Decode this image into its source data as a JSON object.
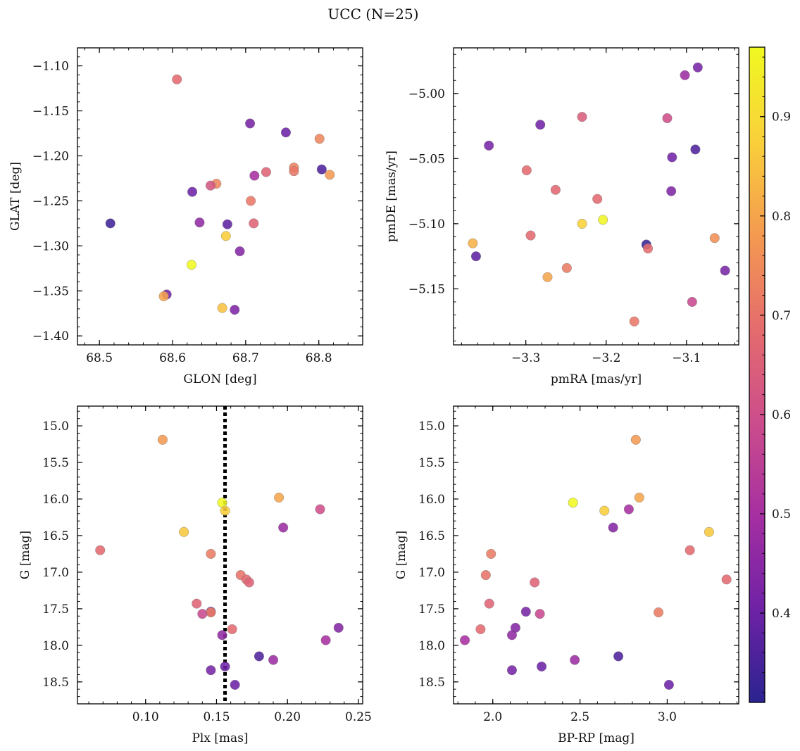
{
  "figure": {
    "title": "UCC (N=25)"
  },
  "colors": {
    "colormap": [
      "#2a2390",
      "#6f22a6",
      "#a62fa1",
      "#cc4d8b",
      "#e56c6d",
      "#f49a50",
      "#f9d03a",
      "#f0f921"
    ],
    "vline": "#000000",
    "frame": "#000000"
  },
  "colorbar": {
    "range": [
      0.31,
      0.97
    ],
    "ticks": [
      0.4,
      0.5,
      0.6,
      0.7,
      0.8,
      0.9
    ],
    "tick_labels": [
      "0.4",
      "0.5",
      "0.6",
      "0.7",
      "0.8",
      "0.9"
    ]
  },
  "chart_data": [
    {
      "type": "scatter",
      "xlabel": "GLON [deg]",
      "ylabel": "GLAT [deg]",
      "xlim": [
        68.47,
        68.86
      ],
      "ylim": [
        -1.41,
        -1.08
      ],
      "y_inverted": false,
      "xticks": [
        68.5,
        68.6,
        68.7,
        68.8
      ],
      "xtick_labels": [
        "68.5",
        "68.6",
        "68.7",
        "68.8"
      ],
      "yticks": [
        -1.4,
        -1.35,
        -1.3,
        -1.25,
        -1.2,
        -1.15,
        -1.1
      ],
      "ytick_labels": [
        "−1.40",
        "−1.35",
        "−1.30",
        "−1.25",
        "−1.20",
        "−1.15",
        "−1.10"
      ],
      "points": [
        {
          "x": 68.606,
          "y": -1.115,
          "c": 0.68
        },
        {
          "x": 68.706,
          "y": -1.164,
          "c": 0.42
        },
        {
          "x": 68.755,
          "y": -1.174,
          "c": 0.4
        },
        {
          "x": 68.801,
          "y": -1.181,
          "c": 0.74
        },
        {
          "x": 68.804,
          "y": -1.215,
          "c": 0.36
        },
        {
          "x": 68.815,
          "y": -1.221,
          "c": 0.78
        },
        {
          "x": 68.766,
          "y": -1.213,
          "c": 0.73
        },
        {
          "x": 68.766,
          "y": -1.217,
          "c": 0.71
        },
        {
          "x": 68.728,
          "y": -1.218,
          "c": 0.66
        },
        {
          "x": 68.712,
          "y": -1.222,
          "c": 0.5
        },
        {
          "x": 68.66,
          "y": -1.231,
          "c": 0.74
        },
        {
          "x": 68.652,
          "y": -1.233,
          "c": 0.62
        },
        {
          "x": 68.627,
          "y": -1.24,
          "c": 0.4
        },
        {
          "x": 68.707,
          "y": -1.25,
          "c": 0.71
        },
        {
          "x": 68.515,
          "y": -1.275,
          "c": 0.34
        },
        {
          "x": 68.637,
          "y": -1.274,
          "c": 0.46
        },
        {
          "x": 68.675,
          "y": -1.276,
          "c": 0.38
        },
        {
          "x": 68.711,
          "y": -1.275,
          "c": 0.66
        },
        {
          "x": 68.673,
          "y": -1.289,
          "c": 0.87
        },
        {
          "x": 68.692,
          "y": -1.306,
          "c": 0.44
        },
        {
          "x": 68.626,
          "y": -1.321,
          "c": 0.97
        },
        {
          "x": 68.592,
          "y": -1.354,
          "c": 0.42
        },
        {
          "x": 68.588,
          "y": -1.356,
          "c": 0.8
        },
        {
          "x": 68.668,
          "y": -1.369,
          "c": 0.85
        },
        {
          "x": 68.685,
          "y": -1.371,
          "c": 0.43
        }
      ]
    },
    {
      "type": "scatter",
      "xlabel": "pmRA [mas/yr]",
      "ylabel": "pmDE [mas/yr]",
      "xlim": [
        -3.39,
        -3.035
      ],
      "ylim": [
        -5.193,
        -4.965
      ],
      "y_inverted": false,
      "xticks": [
        -3.3,
        -3.2,
        -3.1
      ],
      "xtick_labels": [
        "−3.3",
        "−3.2",
        "−3.1"
      ],
      "yticks": [
        -5.15,
        -5.1,
        -5.05,
        -5.0
      ],
      "ytick_labels": [
        "−5.15",
        "−5.10",
        "−5.05",
        "−5.00"
      ],
      "points": [
        {
          "x": -3.086,
          "y": -4.98,
          "c": 0.42
        },
        {
          "x": -3.102,
          "y": -4.986,
          "c": 0.48
        },
        {
          "x": -3.23,
          "y": -5.018,
          "c": 0.64
        },
        {
          "x": -3.124,
          "y": -5.019,
          "c": 0.6
        },
        {
          "x": -3.282,
          "y": -5.024,
          "c": 0.41
        },
        {
          "x": -3.346,
          "y": -5.04,
          "c": 0.42
        },
        {
          "x": -3.089,
          "y": -5.043,
          "c": 0.36
        },
        {
          "x": -3.118,
          "y": -5.049,
          "c": 0.41
        },
        {
          "x": -3.299,
          "y": -5.059,
          "c": 0.68
        },
        {
          "x": -3.263,
          "y": -5.074,
          "c": 0.67
        },
        {
          "x": -3.119,
          "y": -5.075,
          "c": 0.43
        },
        {
          "x": -3.211,
          "y": -5.081,
          "c": 0.68
        },
        {
          "x": -3.23,
          "y": -5.1,
          "c": 0.88
        },
        {
          "x": -3.204,
          "y": -5.097,
          "c": 0.96
        },
        {
          "x": -3.294,
          "y": -5.109,
          "c": 0.68
        },
        {
          "x": -3.065,
          "y": -5.111,
          "c": 0.76
        },
        {
          "x": -3.366,
          "y": -5.115,
          "c": 0.82
        },
        {
          "x": -3.15,
          "y": -5.116,
          "c": 0.33
        },
        {
          "x": -3.148,
          "y": -5.119,
          "c": 0.69
        },
        {
          "x": -3.362,
          "y": -5.125,
          "c": 0.38
        },
        {
          "x": -3.249,
          "y": -5.134,
          "c": 0.72
        },
        {
          "x": -3.052,
          "y": -5.136,
          "c": 0.42
        },
        {
          "x": -3.273,
          "y": -5.141,
          "c": 0.8
        },
        {
          "x": -3.093,
          "y": -5.16,
          "c": 0.58
        },
        {
          "x": -3.165,
          "y": -5.175,
          "c": 0.71
        }
      ]
    },
    {
      "type": "scatter",
      "xlabel": "Plx [mas]",
      "ylabel": "G [mag]",
      "xlim": [
        0.052,
        0.253
      ],
      "ylim": [
        18.8,
        14.73
      ],
      "y_inverted": true,
      "xticks": [
        0.1,
        0.15,
        0.2,
        0.25
      ],
      "xtick_labels": [
        "0.10",
        "0.15",
        "0.20",
        "0.25"
      ],
      "yticks": [
        15.0,
        15.5,
        16.0,
        16.5,
        17.0,
        17.5,
        18.0,
        18.5
      ],
      "ytick_labels": [
        "15.0",
        "15.5",
        "16.0",
        "16.5",
        "17.0",
        "17.5",
        "18.0",
        "18.5"
      ],
      "vline_x": 0.156,
      "points": [
        {
          "x": 0.112,
          "y": 15.19,
          "c": 0.78
        },
        {
          "x": 0.194,
          "y": 15.98,
          "c": 0.8
        },
        {
          "x": 0.154,
          "y": 16.05,
          "c": 0.97
        },
        {
          "x": 0.156,
          "y": 16.16,
          "c": 0.87
        },
        {
          "x": 0.223,
          "y": 16.14,
          "c": 0.6
        },
        {
          "x": 0.197,
          "y": 16.39,
          "c": 0.48
        },
        {
          "x": 0.127,
          "y": 16.45,
          "c": 0.86
        },
        {
          "x": 0.068,
          "y": 16.7,
          "c": 0.68
        },
        {
          "x": 0.146,
          "y": 16.75,
          "c": 0.72
        },
        {
          "x": 0.167,
          "y": 17.04,
          "c": 0.7
        },
        {
          "x": 0.171,
          "y": 17.1,
          "c": 0.68
        },
        {
          "x": 0.173,
          "y": 17.14,
          "c": 0.66
        },
        {
          "x": 0.136,
          "y": 17.43,
          "c": 0.66
        },
        {
          "x": 0.146,
          "y": 17.54,
          "c": 0.42
        },
        {
          "x": 0.146,
          "y": 17.55,
          "c": 0.72
        },
        {
          "x": 0.14,
          "y": 17.57,
          "c": 0.58
        },
        {
          "x": 0.161,
          "y": 17.78,
          "c": 0.68
        },
        {
          "x": 0.236,
          "y": 17.76,
          "c": 0.44
        },
        {
          "x": 0.154,
          "y": 17.86,
          "c": 0.46
        },
        {
          "x": 0.227,
          "y": 17.93,
          "c": 0.5
        },
        {
          "x": 0.18,
          "y": 18.15,
          "c": 0.36
        },
        {
          "x": 0.19,
          "y": 18.2,
          "c": 0.48
        },
        {
          "x": 0.156,
          "y": 18.29,
          "c": 0.4
        },
        {
          "x": 0.146,
          "y": 18.34,
          "c": 0.42
        },
        {
          "x": 0.163,
          "y": 18.54,
          "c": 0.4
        }
      ]
    },
    {
      "type": "scatter",
      "xlabel": "BP-RP [mag]",
      "ylabel": "G [mag]",
      "xlim": [
        1.775,
        3.41
      ],
      "ylim": [
        18.8,
        14.73
      ],
      "y_inverted": true,
      "xticks": [
        2.0,
        2.5,
        3.0
      ],
      "xtick_labels": [
        "2.0",
        "2.5",
        "3.0"
      ],
      "yticks": [
        15.0,
        15.5,
        16.0,
        16.5,
        17.0,
        17.5,
        18.0,
        18.5
      ],
      "ytick_labels": [
        "15.0",
        "15.5",
        "16.0",
        "16.5",
        "17.0",
        "17.5",
        "18.0",
        "18.5"
      ],
      "points": [
        {
          "x": 2.82,
          "y": 15.19,
          "c": 0.78
        },
        {
          "x": 2.84,
          "y": 15.98,
          "c": 0.8
        },
        {
          "x": 2.46,
          "y": 16.05,
          "c": 0.97
        },
        {
          "x": 2.64,
          "y": 16.16,
          "c": 0.87
        },
        {
          "x": 2.78,
          "y": 16.14,
          "c": 0.5
        },
        {
          "x": 2.69,
          "y": 16.39,
          "c": 0.44
        },
        {
          "x": 3.24,
          "y": 16.45,
          "c": 0.86
        },
        {
          "x": 3.13,
          "y": 16.7,
          "c": 0.68
        },
        {
          "x": 1.99,
          "y": 16.75,
          "c": 0.72
        },
        {
          "x": 1.96,
          "y": 17.04,
          "c": 0.7
        },
        {
          "x": 3.34,
          "y": 17.1,
          "c": 0.68
        },
        {
          "x": 2.24,
          "y": 17.14,
          "c": 0.66
        },
        {
          "x": 1.98,
          "y": 17.43,
          "c": 0.66
        },
        {
          "x": 2.19,
          "y": 17.54,
          "c": 0.42
        },
        {
          "x": 2.95,
          "y": 17.55,
          "c": 0.72
        },
        {
          "x": 2.27,
          "y": 17.57,
          "c": 0.58
        },
        {
          "x": 1.93,
          "y": 17.78,
          "c": 0.68
        },
        {
          "x": 2.13,
          "y": 17.76,
          "c": 0.44
        },
        {
          "x": 2.11,
          "y": 17.86,
          "c": 0.46
        },
        {
          "x": 1.84,
          "y": 17.93,
          "c": 0.5
        },
        {
          "x": 2.72,
          "y": 18.15,
          "c": 0.36
        },
        {
          "x": 2.47,
          "y": 18.2,
          "c": 0.48
        },
        {
          "x": 2.28,
          "y": 18.29,
          "c": 0.4
        },
        {
          "x": 2.11,
          "y": 18.34,
          "c": 0.42
        },
        {
          "x": 3.01,
          "y": 18.54,
          "c": 0.4
        }
      ]
    }
  ]
}
